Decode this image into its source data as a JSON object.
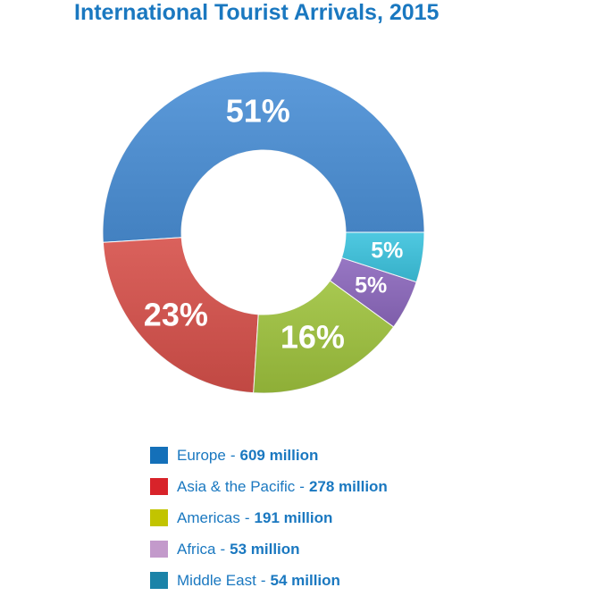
{
  "chart_data": {
    "type": "pie",
    "title": "International Tourist Arrivals, 2015",
    "slices": [
      {
        "name": "Europe",
        "share_percent": 51,
        "percent_label": "51%",
        "value_label": "609 million",
        "value": 609,
        "color": "#4a8fd6",
        "legend_color": "#1470b9"
      },
      {
        "name": "Asia & the Pacific",
        "share_percent": 23,
        "percent_label": "23%",
        "value_label": "278 million",
        "value": 278,
        "color": "#d6504a",
        "legend_color": "#d8232a"
      },
      {
        "name": "Americas",
        "share_percent": 16,
        "percent_label": "16%",
        "value_label": "191 million",
        "value": 191,
        "color": "#9ec23d",
        "legend_color": "#c2c400"
      },
      {
        "name": "Africa",
        "share_percent": 5,
        "percent_label": "5%",
        "value_label": "53 million",
        "value": 53,
        "color": "#8c68bd",
        "legend_color": "#c39acb"
      },
      {
        "name": "Middle East",
        "share_percent": 5,
        "percent_label": "5%",
        "value_label": "54 million",
        "value": 54,
        "color": "#3cc3de",
        "legend_color": "#1b83a8"
      }
    ],
    "legend": {
      "placement": "bottom",
      "separator": "-"
    }
  }
}
